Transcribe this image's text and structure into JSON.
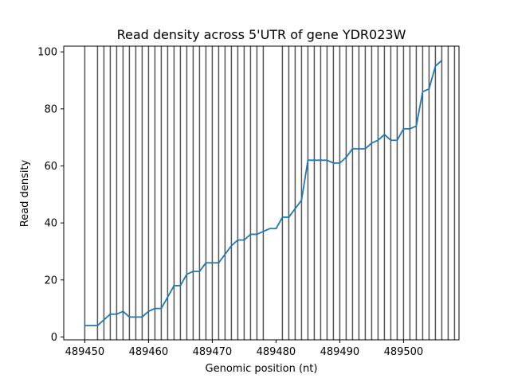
{
  "chart_data": {
    "type": "line",
    "title": "Read density across 5'UTR of gene YDR023W",
    "xlabel": "Genomic position (nt)",
    "ylabel": "Read density",
    "xlim": [
      489446.7,
      489508.7
    ],
    "ylim": [
      -1,
      102
    ],
    "xticks": [
      489450,
      489460,
      489470,
      489480,
      489490,
      489500
    ],
    "yticks": [
      0,
      20,
      40,
      60,
      80,
      100
    ],
    "grid": false,
    "line_color": "#1f77b4",
    "vline_color": "#555555",
    "x": [
      489450,
      489451,
      489452,
      489453,
      489454,
      489455,
      489456,
      489457,
      489458,
      489459,
      489460,
      489461,
      489462,
      489463,
      489464,
      489465,
      489466,
      489467,
      489468,
      489469,
      489470,
      489471,
      489472,
      489473,
      489474,
      489475,
      489476,
      489477,
      489478,
      489479,
      489480,
      489481,
      489482,
      489483,
      489484,
      489485,
      489486,
      489487,
      489488,
      489489,
      489490,
      489491,
      489492,
      489493,
      489494,
      489495,
      489496,
      489497,
      489498,
      489499,
      489500,
      489501,
      489502,
      489503,
      489504,
      489505,
      489506
    ],
    "y": [
      4,
      4,
      4,
      6,
      8,
      8,
      9,
      7,
      7,
      7,
      9,
      10,
      10,
      14,
      18,
      18,
      22,
      23,
      23,
      26,
      26,
      26,
      29,
      32,
      34,
      34,
      36,
      36,
      37,
      38,
      38,
      42,
      42,
      45,
      48,
      62,
      62,
      62,
      62,
      61,
      61,
      63,
      66,
      66,
      66,
      68,
      69,
      71,
      69,
      69,
      73,
      73,
      74,
      86,
      87,
      95,
      97
    ],
    "vlines": [
      489450,
      489452,
      489453,
      489454,
      489455,
      489456,
      489457,
      489458,
      489459,
      489460,
      489461,
      489462,
      489463,
      489464,
      489465,
      489466,
      489467,
      489468,
      489469,
      489470,
      489471,
      489472,
      489473,
      489474,
      489475,
      489476,
      489477,
      489478,
      489481,
      489482,
      489483,
      489484,
      489485,
      489486,
      489487,
      489488,
      489489,
      489490,
      489491,
      489492,
      489493,
      489494,
      489495,
      489496,
      489497,
      489498,
      489499,
      489500,
      489501,
      489502,
      489503,
      489504,
      489505,
      489506,
      489507,
      489508
    ]
  }
}
